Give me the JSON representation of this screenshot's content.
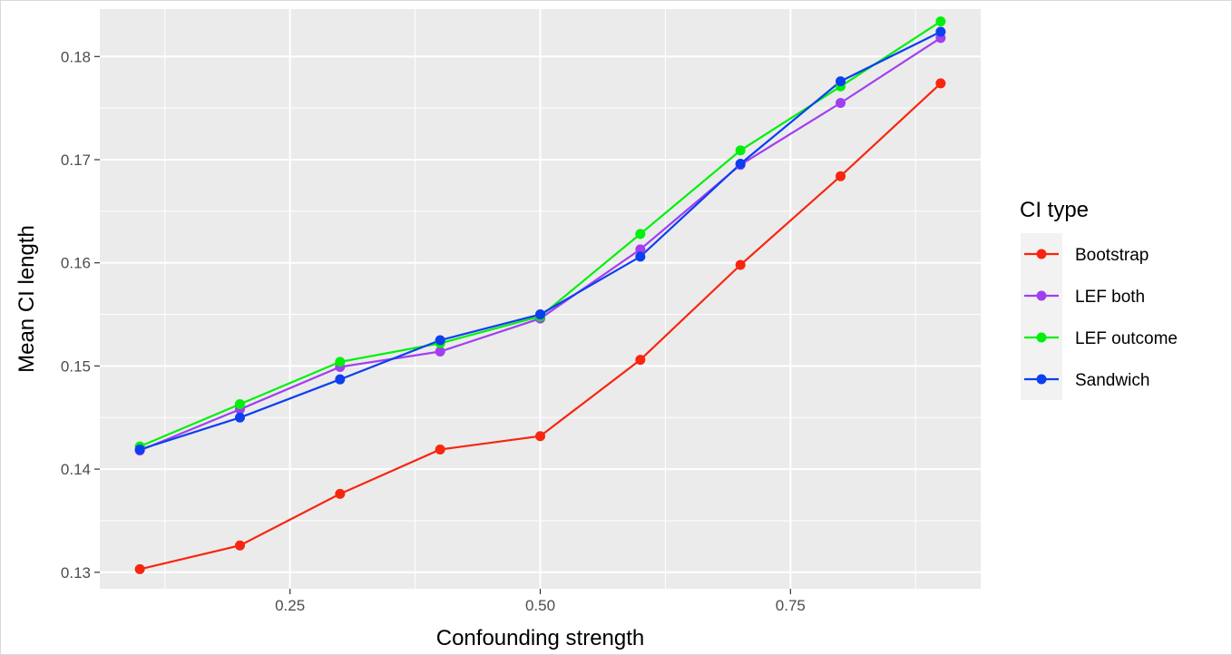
{
  "chart_data": {
    "type": "line",
    "title": "",
    "xlabel": "Confounding strength",
    "ylabel": "Mean CI length",
    "xlim": [
      0.06,
      0.94
    ],
    "ylim": [
      0.1284,
      0.1846
    ],
    "x_ticks": [
      0.25,
      0.5,
      0.75
    ],
    "x_tick_labels": [
      "0.25",
      "0.50",
      "0.75"
    ],
    "y_ticks": [
      0.13,
      0.14,
      0.15,
      0.16,
      0.17,
      0.18
    ],
    "y_tick_labels": [
      "0.13",
      "0.14",
      "0.15",
      "0.16",
      "0.17",
      "0.18"
    ],
    "grid": true,
    "legend": {
      "title": "CI type",
      "position": "right"
    },
    "x": [
      0.1,
      0.2,
      0.3,
      0.4,
      0.5,
      0.6,
      0.7,
      0.8,
      0.9
    ],
    "series": [
      {
        "name": "Bootstrap",
        "color": "#f8250f",
        "values": [
          0.1303,
          0.1326,
          0.1376,
          0.1419,
          0.1432,
          0.1506,
          0.1598,
          0.1684,
          0.1774
        ]
      },
      {
        "name": "LEF both",
        "color": "#a13ff0",
        "values": [
          0.1418,
          0.1458,
          0.1499,
          0.1514,
          0.1546,
          0.1613,
          0.1695,
          0.1755,
          0.1818
        ]
      },
      {
        "name": "LEF outcome",
        "color": "#00f00c",
        "values": [
          0.1422,
          0.1463,
          0.1504,
          0.1522,
          0.1548,
          0.1628,
          0.1709,
          0.1771,
          0.1834
        ]
      },
      {
        "name": "Sandwich",
        "color": "#0b3ff0",
        "values": [
          0.1419,
          0.145,
          0.1487,
          0.1525,
          0.155,
          0.1606,
          0.1696,
          0.1776,
          0.1824
        ]
      }
    ]
  }
}
